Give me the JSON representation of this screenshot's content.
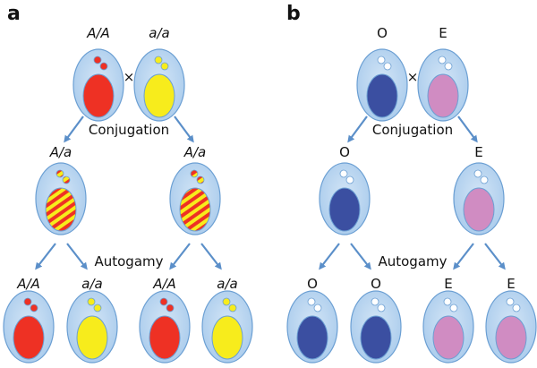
{
  "colors": {
    "cell_fill": "#bcd7f0",
    "cell_stroke": "#6b9fd3",
    "arrow": "#5b8fc9",
    "red": "#ee3124",
    "yellow": "#f7ec1c",
    "blue": "#3b4fa1",
    "pink": "#d08cc2",
    "white": "#ffffff"
  },
  "panels": [
    {
      "letter": "a",
      "cross_symbol": "×",
      "step1": "Conjugation",
      "step2": "Autogamy",
      "italic": true,
      "parents": [
        {
          "label": "A/A",
          "nucleus": "red"
        },
        {
          "label": "a/a",
          "nucleus": "yellow"
        }
      ],
      "progeny": [
        {
          "label": "A/a",
          "nucleus": "striped"
        },
        {
          "label": "A/a",
          "nucleus": "striped"
        }
      ],
      "final": [
        {
          "label": "A/A",
          "nucleus": "red"
        },
        {
          "label": "a/a",
          "nucleus": "yellow"
        },
        {
          "label": "A/A",
          "nucleus": "red"
        },
        {
          "label": "a/a",
          "nucleus": "yellow"
        }
      ]
    },
    {
      "letter": "b",
      "cross_symbol": "×",
      "step1": "Conjugation",
      "step2": "Autogamy",
      "italic": false,
      "parents": [
        {
          "label": "O",
          "nucleus": "blue"
        },
        {
          "label": "E",
          "nucleus": "pink"
        }
      ],
      "progeny": [
        {
          "label": "O",
          "nucleus": "blue"
        },
        {
          "label": "E",
          "nucleus": "pink"
        }
      ],
      "final": [
        {
          "label": "O",
          "nucleus": "blue"
        },
        {
          "label": "O",
          "nucleus": "blue"
        },
        {
          "label": "E",
          "nucleus": "pink"
        },
        {
          "label": "E",
          "nucleus": "pink"
        }
      ]
    }
  ]
}
